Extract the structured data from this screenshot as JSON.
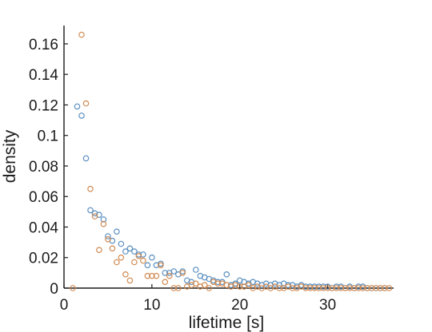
{
  "chart_data": {
    "type": "scatter",
    "xlabel": "lifetime [s]",
    "ylabel": "density",
    "xlim": [
      0,
      37.5
    ],
    "ylim": [
      0,
      0.172
    ],
    "x_ticks": [
      0,
      10,
      20,
      30
    ],
    "y_ticks": [
      0,
      0.02,
      0.04,
      0.06,
      0.08,
      0.1,
      0.12,
      0.14,
      0.16
    ],
    "x_tick_labels": [
      "0",
      "10",
      "20",
      "30"
    ],
    "y_tick_labels": [
      "0",
      "0.02",
      "0.04",
      "0.06",
      "0.08",
      "0.1",
      "0.12",
      "0.14",
      "0.16"
    ],
    "grid": false,
    "marker": "open-circle",
    "series": [
      {
        "color": "#5b8fbf",
        "x": [
          1.5,
          2.0,
          2.5,
          3.0,
          3.5,
          4.0,
          4.5,
          5.0,
          5.5,
          6.0,
          6.5,
          7.0,
          7.5,
          8.0,
          8.5,
          9.0,
          9.5,
          10.0,
          10.5,
          11.0,
          11.5,
          12.0,
          12.5,
          13.0,
          13.5,
          14.0,
          14.5,
          15.0,
          15.5,
          16.0,
          16.5,
          17.0,
          17.5,
          18.0,
          18.5,
          19.0,
          19.5,
          20.0,
          20.5,
          21.0,
          21.5,
          22.0,
          22.5,
          23.0,
          23.5,
          24.0,
          24.5,
          25.0,
          25.5,
          26.0,
          26.5,
          27.0,
          27.5,
          28.0,
          28.5,
          29.0,
          29.5,
          30.0,
          30.5,
          31.0,
          31.5,
          32.0,
          32.5,
          33.0,
          33.5,
          34.0,
          34.5,
          35.0,
          35.5,
          36.0,
          36.5
        ],
        "y": [
          0.119,
          0.113,
          0.085,
          0.051,
          0.049,
          0.048,
          0.045,
          0.034,
          0.031,
          0.037,
          0.029,
          0.024,
          0.026,
          0.024,
          0.022,
          0.022,
          0.015,
          0.02,
          0.015,
          0.016,
          0.01,
          0.01,
          0.011,
          0.009,
          0.011,
          0.005,
          0.004,
          0.012,
          0.008,
          0.007,
          0.006,
          0.005,
          0.004,
          0.004,
          0.009,
          0.002,
          0.003,
          0.005,
          0.004,
          0.003,
          0.004,
          0.003,
          0.002,
          0.003,
          0.002,
          0.003,
          0.002,
          0.003,
          0.002,
          0.002,
          0.001,
          0.002,
          0.001,
          0.001,
          0.001,
          0.001,
          0.001,
          0.001,
          0.0,
          0.001,
          0.001,
          0.0,
          0.001,
          0.0,
          0.001,
          0.001,
          0.0,
          0.0,
          0.0,
          0.0,
          0.0
        ]
      },
      {
        "color": "#d08a52",
        "x": [
          1.0,
          2.0,
          2.5,
          3.0,
          3.5,
          4.0,
          4.5,
          5.0,
          5.5,
          6.0,
          6.5,
          7.0,
          7.5,
          8.0,
          8.5,
          9.0,
          9.5,
          10.0,
          10.5,
          11.0,
          11.5,
          12.0,
          12.5,
          13.0,
          13.5,
          14.0,
          14.5,
          15.0,
          15.5,
          16.0,
          16.5,
          17.0,
          17.5,
          18.0,
          18.5,
          19.0,
          19.5,
          20.0,
          20.5,
          21.0,
          21.5,
          22.0,
          22.5,
          23.0,
          23.5,
          24.0,
          24.5,
          25.0,
          25.5,
          26.0,
          26.5,
          27.0,
          27.5,
          28.0,
          28.5,
          29.0,
          29.5,
          30.0,
          30.5,
          31.0,
          31.5,
          32.0,
          32.5,
          33.0,
          33.5,
          34.0,
          34.5,
          35.0,
          35.5,
          36.0,
          36.5,
          37.0
        ],
        "y": [
          0.0,
          0.166,
          0.121,
          0.065,
          0.047,
          0.025,
          0.042,
          0.032,
          0.026,
          0.017,
          0.02,
          0.009,
          0.005,
          0.017,
          0.021,
          0.018,
          0.008,
          0.008,
          0.008,
          0.015,
          0.004,
          0.008,
          0.0,
          0.0,
          0.01,
          0.001,
          0.002,
          0.003,
          0.001,
          0.002,
          0.0,
          0.004,
          0.003,
          0.003,
          0.002,
          0.001,
          0.002,
          0.001,
          0.001,
          0.002,
          0.0,
          0.001,
          0.0,
          0.001,
          0.0,
          0.001,
          0.0,
          0.0,
          0.001,
          0.0,
          0.0,
          0.001,
          0.0,
          0.0,
          0.0,
          0.0,
          0.0,
          0.0,
          0.0,
          0.0,
          0.0,
          0.0,
          0.0,
          0.0,
          0.0,
          0.0,
          0.0,
          0.0,
          0.0,
          0.0,
          0.0,
          0.0
        ]
      }
    ]
  }
}
